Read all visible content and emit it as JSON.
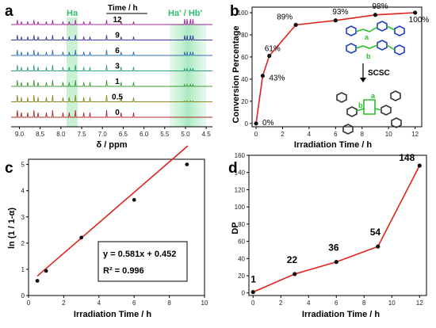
{
  "colors": {
    "accent_green": "#2fbf6a",
    "highlight_green": "#bff0cd",
    "line_red": "#e0231c",
    "marker_black": "#111111",
    "molecule_blue": "#1f3fbf",
    "molecule_green": "#28c02a"
  },
  "chart_data": [
    {
      "panel": "a",
      "type": "line",
      "xlabel": "δ / ppm",
      "x_ticks": [
        "9.0",
        "8.5",
        "8.0",
        "7.5",
        "7.0",
        "6.5",
        "6.0",
        "5.5",
        "5.0",
        "4.5"
      ],
      "xlim": [
        9.2,
        4.35
      ],
      "legend_title": "Time / h",
      "series": [
        {
          "name": "12",
          "color": "#a0279a"
        },
        {
          "name": "9",
          "color": "#3a3aa5"
        },
        {
          "name": "6",
          "color": "#2f6fb2"
        },
        {
          "name": "3",
          "color": "#2f9f7c"
        },
        {
          "name": "1",
          "color": "#3f9a35"
        },
        {
          "name": "0.5",
          "color": "#8c8a1e"
        },
        {
          "name": "0",
          "color": "#b0282c"
        }
      ],
      "annotations": {
        "ha": "Ha",
        "hab": "Ha' / Hb'"
      }
    },
    {
      "panel": "b",
      "type": "line",
      "xlabel": "Irradiation Time / h",
      "ylabel": "Conversion Percentage",
      "xlim": [
        -0.3,
        12.5
      ],
      "ylim": [
        -3,
        105
      ],
      "x_ticks": [
        0,
        2,
        4,
        6,
        8,
        10,
        12
      ],
      "y_ticks": [
        0,
        20,
        40,
        60,
        80,
        100
      ],
      "x": [
        0,
        0.5,
        1,
        3,
        6,
        9,
        12
      ],
      "y": [
        0,
        43,
        61,
        89,
        93,
        98,
        100
      ],
      "labels": [
        "0%",
        "43%",
        "61%",
        "89%",
        "93%",
        "98%",
        "100%"
      ],
      "scheme": {
        "bond_a": "a",
        "bond_b": "b",
        "process": "SCSC"
      }
    },
    {
      "panel": "c",
      "type": "scatter",
      "xlabel": "Irradiation Time / h",
      "ylabel": "ln (1 / 1-α)",
      "xlim": [
        0,
        10
      ],
      "ylim": [
        0,
        5.2
      ],
      "x_ticks": [
        0,
        2,
        4,
        6,
        8,
        10
      ],
      "y_ticks": [
        0,
        1,
        2,
        3,
        4,
        5
      ],
      "x": [
        0.5,
        1,
        3,
        6,
        9
      ],
      "y": [
        0.56,
        0.94,
        2.21,
        3.65,
        5.0
      ],
      "fit": {
        "slope": 0.581,
        "intercept": 0.452,
        "x_start": 0.5,
        "x_end": 9.05
      },
      "equation": "y = 0.581x + 0.452",
      "r_squared": "R² = 0.996"
    },
    {
      "panel": "d",
      "type": "line",
      "xlabel": "Irradiation Time / h",
      "ylabel": "DP",
      "xlim": [
        -0.3,
        12.5
      ],
      "ylim": [
        -3,
        160
      ],
      "x_ticks": [
        0,
        2,
        4,
        6,
        8,
        10,
        12
      ],
      "y_ticks": [
        0,
        20,
        40,
        60,
        80,
        100,
        120,
        140,
        160
      ],
      "x": [
        0,
        3,
        6,
        9,
        12
      ],
      "y": [
        1,
        22,
        36,
        54,
        148
      ],
      "labels": [
        "1",
        "22",
        "36",
        "54",
        "148"
      ]
    }
  ]
}
